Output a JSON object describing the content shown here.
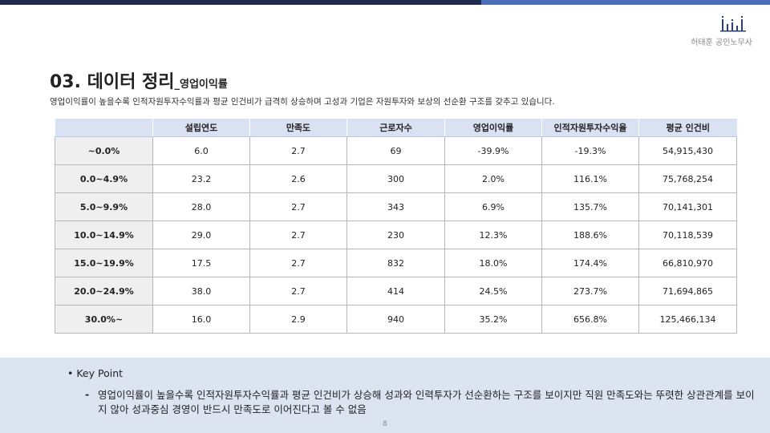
{
  "header": {
    "firm_name": "허태훈 공인노무사",
    "logo_icon": "firm-logo-icon",
    "colors": {
      "bar_dark": "#1f2d4d",
      "bar_light": "#4a6fb8"
    }
  },
  "slide": {
    "title": "03. 데이터 정리",
    "title_sep": "_",
    "title_sub": "영업이익률",
    "subtitle": "영업이익률이 높을수록 인적자원투자수익률과 평균 인건비가 급격히 상승하며 고성과 기업은 자원투자와 보상의 선순환 구조를 갖추고 있습니다."
  },
  "table": {
    "columns": [
      "설립연도",
      "만족도",
      "근로자수",
      "영업이익률",
      "인적자원투자수익율",
      "평균 인건비"
    ],
    "rows": [
      {
        "label": "~0.0%",
        "cells": [
          "6.0",
          "2.7",
          "69",
          "-39.9%",
          "-19.3%",
          "54,915,430"
        ]
      },
      {
        "label": "0.0~4.9%",
        "cells": [
          "23.2",
          "2.6",
          "300",
          "2.0%",
          "116.1%",
          "75,768,254"
        ]
      },
      {
        "label": "5.0~9.9%",
        "cells": [
          "28.0",
          "2.7",
          "343",
          "6.9%",
          "135.7%",
          "70,141,301"
        ]
      },
      {
        "label": "10.0~14.9%",
        "cells": [
          "29.0",
          "2.7",
          "230",
          "12.3%",
          "188.6%",
          "70,118,539"
        ]
      },
      {
        "label": "15.0~19.9%",
        "cells": [
          "17.5",
          "2.7",
          "832",
          "18.0%",
          "174.4%",
          "66,810,970"
        ]
      },
      {
        "label": "20.0~24.9%",
        "cells": [
          "38.0",
          "2.7",
          "414",
          "24.5%",
          "273.7%",
          "71,694,865"
        ]
      },
      {
        "label": "30.0%~",
        "cells": [
          "16.0",
          "2.9",
          "940",
          "35.2%",
          "656.8%",
          "125,466,134"
        ]
      }
    ]
  },
  "key_point": {
    "title": "• Key Point",
    "dash": "-",
    "text": "영업이익률이 높을수록 인적자원투자수익률과 평균 인건비가 상승해 성과와 인력투자가 선순환하는 구조를 보이지만 직원 만족도와는 뚜렷한 상관관계를 보이지 않아 성과중심 경영이 반드시 만족도로 이어진다고 볼 수 없음"
  },
  "page_number": "8"
}
